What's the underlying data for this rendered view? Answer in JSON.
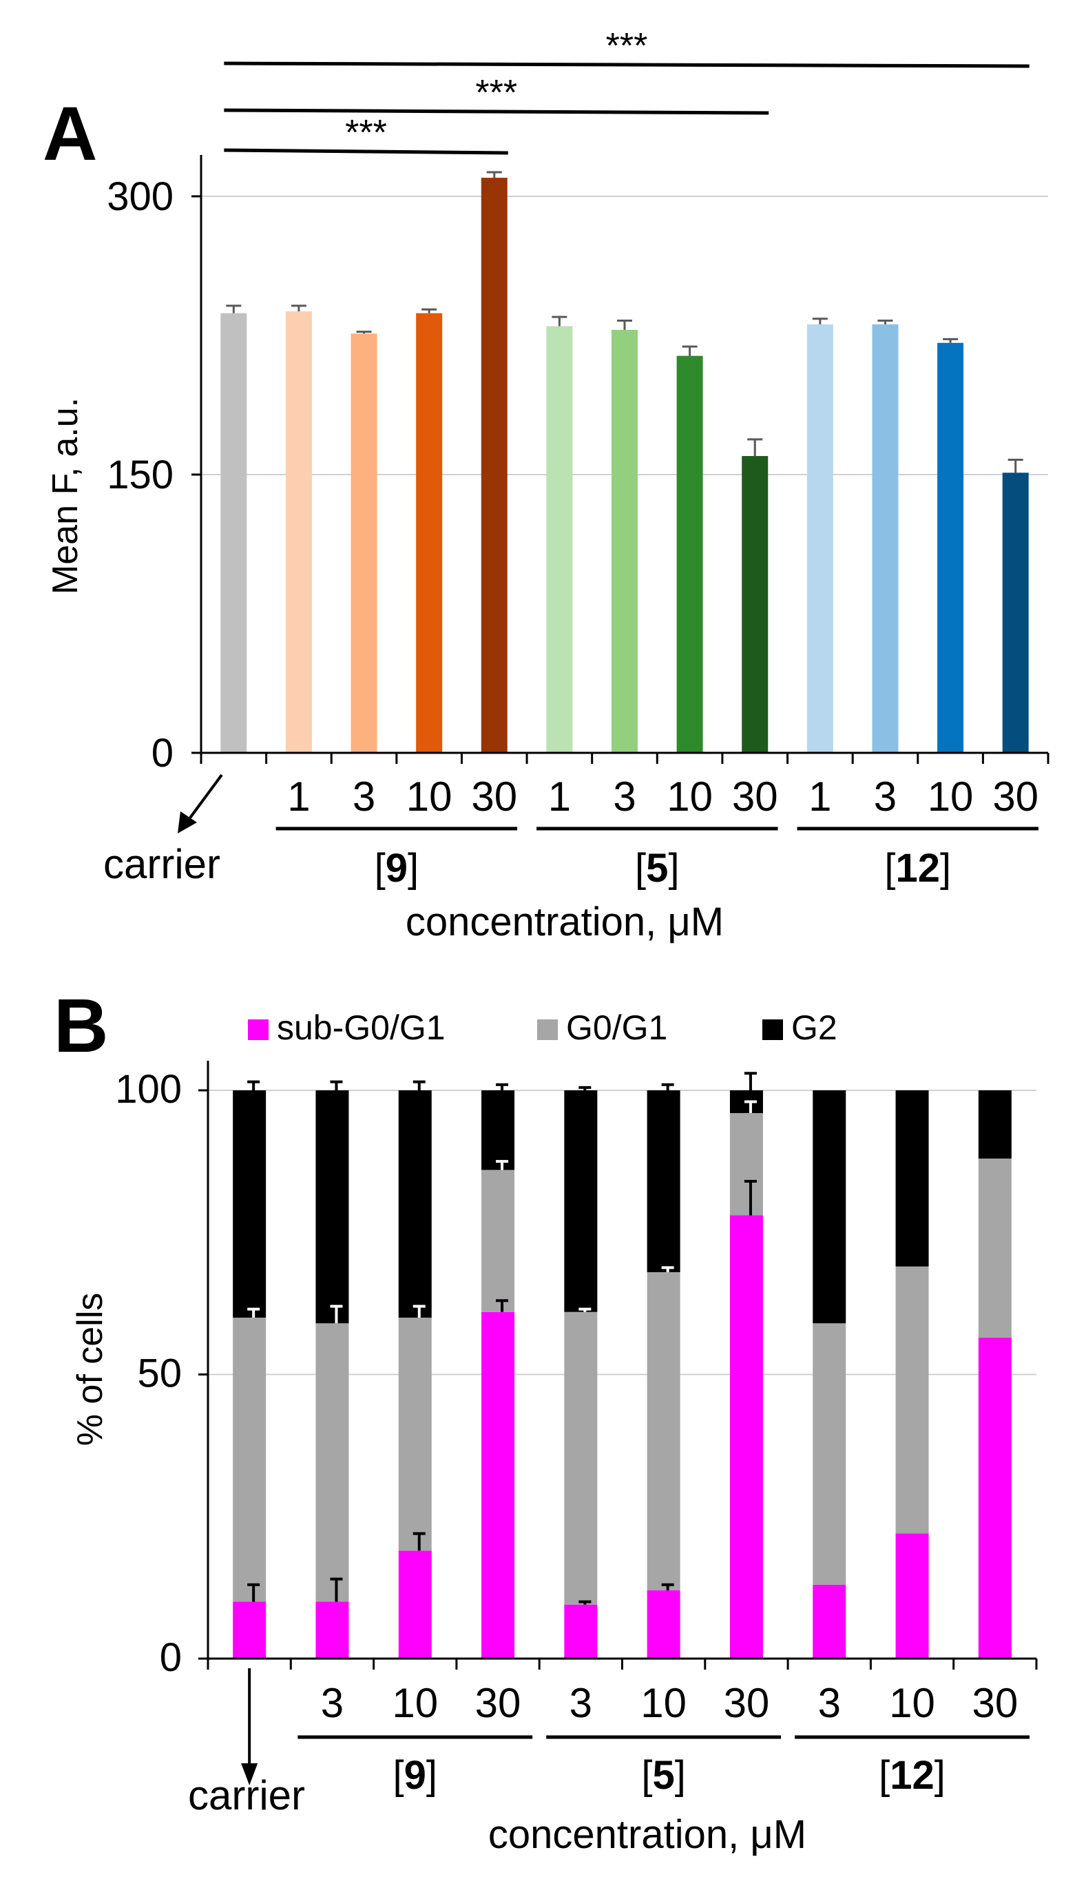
{
  "panel_a_label": "A",
  "panel_b_label": "B",
  "chart_data": [
    {
      "type": "bar",
      "panel": "A",
      "ylabel": "Mean F, a.u.",
      "xlabel": "concentration, μM",
      "ylim": [
        0,
        300
      ],
      "yticks": [
        0,
        150,
        300
      ],
      "grid": true,
      "carrier_label": "carrier",
      "groups": [
        {
          "compound": "9",
          "prefix": "[",
          "suffix": "]",
          "concentrations": [
            "1",
            "3",
            "10",
            "30"
          ]
        },
        {
          "compound": "5",
          "prefix": "[",
          "suffix": "]",
          "concentrations": [
            "1",
            "3",
            "10",
            "30"
          ]
        },
        {
          "compound": "12",
          "prefix": "[",
          "suffix": "]",
          "concentrations": [
            "1",
            "3",
            "10",
            "30"
          ]
        }
      ],
      "bars": [
        {
          "name": "carrier",
          "value": 237,
          "error": 4,
          "color": "#c0c0c0"
        },
        {
          "name": "[9] 1",
          "value": 238,
          "error": 3,
          "color": "#fdcfb0"
        },
        {
          "name": "[9] 3",
          "value": 226,
          "error": 1,
          "color": "#fdb17f"
        },
        {
          "name": "[9] 10",
          "value": 237,
          "error": 2,
          "color": "#e05a0a"
        },
        {
          "name": "[9] 30",
          "value": 310,
          "error": 3,
          "color": "#993504"
        },
        {
          "name": "[5] 1",
          "value": 230,
          "error": 5,
          "color": "#bbe2b2"
        },
        {
          "name": "[5] 3",
          "value": 228,
          "error": 5,
          "color": "#93d07e"
        },
        {
          "name": "[5] 10",
          "value": 214,
          "error": 5,
          "color": "#2e8a2a"
        },
        {
          "name": "[5] 30",
          "value": 160,
          "error": 9,
          "color": "#1e5a1c"
        },
        {
          "name": "[12] 1",
          "value": 231,
          "error": 3,
          "color": "#b7d7ee"
        },
        {
          "name": "[12] 3",
          "value": 231,
          "error": 2,
          "color": "#8bc0e4"
        },
        {
          "name": "[12] 10",
          "value": 221,
          "error": 2,
          "color": "#0474c0"
        },
        {
          "name": "[12] 30",
          "value": 151,
          "error": 7,
          "color": "#044d7c"
        }
      ],
      "significance": [
        {
          "from": "carrier",
          "to": "[9] 30",
          "label": "***"
        },
        {
          "from": "carrier",
          "to": "[5] 30",
          "label": "***"
        },
        {
          "from": "carrier",
          "to": "[12] 30",
          "label": "***"
        }
      ]
    },
    {
      "type": "stacked_bar",
      "panel": "B",
      "ylabel": "% of cells",
      "xlabel": "concentration, μM",
      "ylim": [
        0,
        100
      ],
      "yticks": [
        0,
        50,
        100
      ],
      "grid": true,
      "legend_position": "top",
      "carrier_label": "carrier",
      "groups": [
        {
          "compound": "9",
          "prefix": "[",
          "suffix": "]",
          "concentrations": [
            "3",
            "10",
            "30"
          ]
        },
        {
          "compound": "5",
          "prefix": "[",
          "suffix": "]",
          "concentrations": [
            "3",
            "10",
            "30"
          ]
        },
        {
          "compound": "12",
          "prefix": "[",
          "suffix": "]",
          "concentrations": [
            "3",
            "10",
            "30"
          ]
        }
      ],
      "series": [
        {
          "name": "sub-G0/G1",
          "color": "#ff00ff",
          "values": [
            10,
            10,
            19,
            61,
            9.5,
            12,
            78,
            13,
            22,
            56.5
          ],
          "errors": [
            3,
            4,
            3,
            2,
            0.5,
            1,
            6,
            null,
            null,
            null
          ]
        },
        {
          "name": "G0/G1",
          "color": "#a6a6a6",
          "values": [
            50,
            49,
            41,
            25,
            51.5,
            56,
            18,
            46,
            47,
            31.5
          ],
          "errors": [
            1.5,
            3,
            2,
            1.5,
            0.5,
            0.8,
            2,
            null,
            null,
            null
          ]
        },
        {
          "name": "G2",
          "color": "#000000",
          "values": [
            40,
            41,
            40,
            14,
            39,
            32,
            4,
            41,
            31,
            12
          ],
          "errors": [
            1.5,
            1.5,
            1.5,
            1,
            0.5,
            1,
            3,
            null,
            null,
            null
          ]
        }
      ]
    }
  ]
}
